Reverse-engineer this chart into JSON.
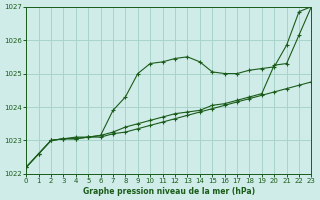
{
  "title": "Graphe pression niveau de la mer (hPa)",
  "bg_color": "#d0ece8",
  "grid_color": "#a8d4cc",
  "line_color": "#1a5c1a",
  "xlim": [
    0,
    23
  ],
  "ylim": [
    1022,
    1027
  ],
  "yticks": [
    1022,
    1023,
    1024,
    1025,
    1026,
    1027
  ],
  "xticks": [
    0,
    1,
    2,
    3,
    4,
    5,
    6,
    7,
    8,
    9,
    10,
    11,
    12,
    13,
    14,
    15,
    16,
    17,
    18,
    19,
    20,
    21,
    22,
    23
  ],
  "s1_x": [
    0,
    1,
    2,
    3,
    4,
    5,
    6,
    7,
    8,
    9,
    10,
    11,
    12,
    13,
    14,
    15,
    16,
    17,
    18,
    19,
    20,
    21,
    22,
    23
  ],
  "s1_y": [
    1022.2,
    1022.6,
    1023.0,
    1023.05,
    1023.05,
    1023.1,
    1023.1,
    1023.2,
    1023.25,
    1023.35,
    1023.45,
    1023.55,
    1023.65,
    1023.75,
    1023.85,
    1023.95,
    1024.05,
    1024.15,
    1024.25,
    1024.35,
    1024.45,
    1024.55,
    1024.65,
    1024.75
  ],
  "s2_x": [
    0,
    1,
    2,
    3,
    4,
    5,
    6,
    7,
    8,
    9,
    10,
    11,
    12,
    13,
    14,
    15,
    16,
    17,
    18,
    19,
    20,
    21,
    22,
    23
  ],
  "s2_y": [
    1022.2,
    1022.6,
    1023.0,
    1023.05,
    1023.1,
    1023.1,
    1023.15,
    1023.9,
    1024.3,
    1025.0,
    1025.3,
    1025.35,
    1025.45,
    1025.5,
    1025.35,
    1025.05,
    1025.0,
    1025.0,
    1025.1,
    1025.15,
    1025.2,
    1025.85,
    1026.85,
    1027.0
  ],
  "s3_x": [
    0,
    1,
    2,
    3,
    4,
    5,
    6,
    7,
    8,
    9,
    10,
    11,
    12,
    13,
    14,
    15,
    16,
    17,
    18,
    19,
    20,
    21,
    22,
    23
  ],
  "s3_y": [
    1022.2,
    1022.6,
    1023.0,
    1023.05,
    1023.05,
    1023.1,
    1023.15,
    1023.25,
    1023.4,
    1023.5,
    1023.6,
    1023.7,
    1023.8,
    1023.85,
    1023.9,
    1024.05,
    1024.1,
    1024.2,
    1024.3,
    1024.4,
    1025.25,
    1025.3,
    1026.15,
    1027.0
  ]
}
